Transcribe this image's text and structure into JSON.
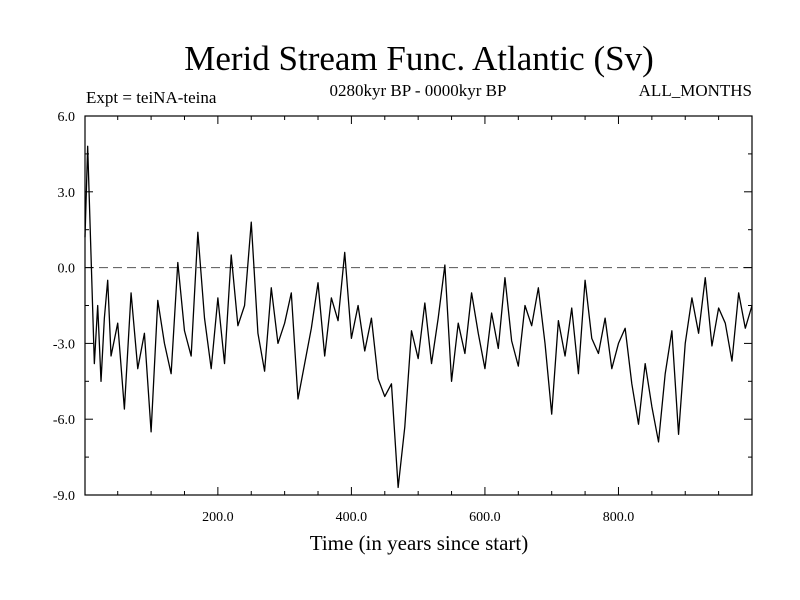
{
  "chart_data": {
    "type": "line",
    "title": "Merid Stream Func. Atlantic (Sv)",
    "subtitle_left": "Expt = teiNA-teina",
    "subtitle_center": "0280kyr BP - 0000kyr BP",
    "subtitle_right": "ALL_MONTHS",
    "xlabel": "Time (in years since start)",
    "ylabel": "",
    "xlim": [
      1,
      1000
    ],
    "ylim": [
      -9,
      6
    ],
    "xticks": [
      200,
      400,
      600,
      800
    ],
    "xtick_labels": [
      "200.0",
      "400.0",
      "600.0",
      "800.0"
    ],
    "yticks": [
      6,
      3,
      0,
      -3,
      -6,
      -9
    ],
    "ytick_labels": [
      "6.0",
      "3.0",
      "0.0",
      "-3.0",
      "-6.0",
      "-9.0"
    ],
    "reference_line": {
      "y": 0,
      "style": "dashed",
      "color": "#555555"
    },
    "line_color": "#000000",
    "grid": false,
    "series": [
      {
        "x": [
          1,
          5,
          10,
          15,
          20,
          25,
          30,
          35,
          40,
          50,
          60,
          70,
          80,
          90,
          100,
          110,
          120,
          130,
          140,
          150,
          160,
          170,
          180,
          190,
          200,
          210,
          220,
          230,
          240,
          250,
          260,
          270,
          280,
          290,
          300,
          310,
          320,
          330,
          340,
          350,
          360,
          370,
          380,
          390,
          400,
          410,
          420,
          430,
          440,
          450,
          460,
          470,
          480,
          490,
          500,
          510,
          520,
          530,
          540,
          550,
          560,
          570,
          580,
          590,
          600,
          610,
          620,
          630,
          640,
          650,
          660,
          670,
          680,
          690,
          700,
          710,
          720,
          730,
          740,
          750,
          760,
          770,
          780,
          790,
          800,
          810,
          820,
          830,
          840,
          850,
          860,
          870,
          880,
          890,
          900,
          910,
          920,
          930,
          940,
          950,
          960,
          970,
          980,
          990,
          1000
        ],
        "values": [
          1.2,
          4.8,
          0.5,
          -3.8,
          -1.5,
          -4.5,
          -2.0,
          -0.5,
          -3.5,
          -2.2,
          -5.6,
          -1.0,
          -4.0,
          -2.6,
          -6.5,
          -1.3,
          -3.0,
          -4.2,
          0.2,
          -2.5,
          -3.5,
          1.4,
          -2.0,
          -4.0,
          -1.2,
          -3.8,
          0.5,
          -2.3,
          -1.5,
          1.8,
          -2.6,
          -4.1,
          -0.8,
          -3.0,
          -2.2,
          -1.0,
          -5.2,
          -3.8,
          -2.4,
          -0.6,
          -3.5,
          -1.2,
          -2.1,
          0.6,
          -2.8,
          -1.5,
          -3.3,
          -2.0,
          -4.4,
          -5.1,
          -4.6,
          -8.7,
          -6.3,
          -2.5,
          -3.6,
          -1.4,
          -3.8,
          -2.0,
          0.1,
          -4.5,
          -2.2,
          -3.4,
          -1.0,
          -2.6,
          -4.0,
          -1.8,
          -3.2,
          -0.4,
          -2.9,
          -3.9,
          -1.5,
          -2.3,
          -0.8,
          -3.0,
          -5.8,
          -2.1,
          -3.5,
          -1.6,
          -4.2,
          -0.5,
          -2.8,
          -3.4,
          -2.0,
          -4.0,
          -3.0,
          -2.4,
          -4.6,
          -6.2,
          -3.8,
          -5.5,
          -6.9,
          -4.2,
          -2.5,
          -6.6,
          -3.0,
          -1.2,
          -2.6,
          -0.4,
          -3.1,
          -1.6,
          -2.2,
          -3.7,
          -1.0,
          -2.4,
          -1.5
        ]
      }
    ]
  }
}
